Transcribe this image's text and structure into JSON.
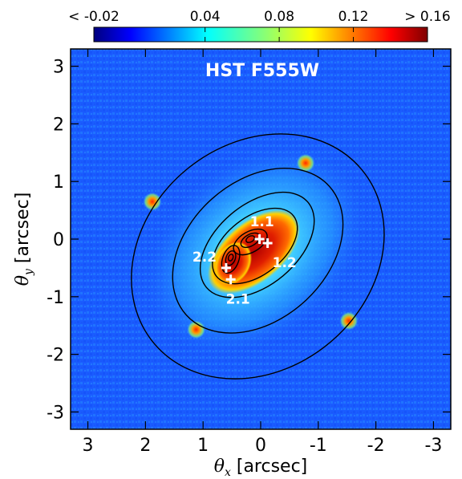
{
  "chart_data": {
    "type": "heatmap",
    "title": "HST F555W",
    "xlabel_symbol": "θ",
    "xlabel_sub": "x",
    "xlabel_unit": " [arcsec]",
    "ylabel_symbol": "θ",
    "ylabel_sub": "y",
    "ylabel_unit": " [arcsec]",
    "xlim": [
      3.3,
      -3.3
    ],
    "ylim": [
      -3.3,
      3.3
    ],
    "x_ticks": [
      3,
      2,
      1,
      0,
      -1,
      -2,
      -3
    ],
    "x_tick_labels": [
      "3",
      "2",
      "1",
      "0",
      "-1",
      "-2",
      "-3"
    ],
    "y_ticks": [
      3,
      2,
      1,
      0,
      -1,
      -2,
      -3
    ],
    "y_tick_labels": [
      "3",
      "2",
      "1",
      "0",
      "-1",
      "-2",
      "-3"
    ],
    "colorbar": {
      "colormap": "jet",
      "range": [
        -0.02,
        0.16
      ],
      "ticks": [
        -0.02,
        0.04,
        0.08,
        0.12,
        0.16
      ],
      "tick_labels": [
        "< -0.02",
        "0.04",
        "0.08",
        "0.12",
        "> 0.16"
      ],
      "placement": "top"
    },
    "colors": {
      "background_low": "#0f3cff",
      "background_mid": "#1e8fff",
      "halo": "#4dd2ff",
      "core": "#d40000"
    },
    "images": [
      {
        "label": "1.1",
        "x": 0.02,
        "y": 0.0
      },
      {
        "label": "1.2",
        "x": -0.12,
        "y": -0.07
      },
      {
        "label": "2.2",
        "x": 0.6,
        "y": -0.5
      },
      {
        "label": "2.1",
        "x": 0.52,
        "y": -0.7
      }
    ],
    "knots": [
      {
        "x": 1.88,
        "y": 0.65
      },
      {
        "x": -0.78,
        "y": 1.32
      },
      {
        "x": 1.12,
        "y": -1.57
      },
      {
        "x": -1.53,
        "y": -1.42
      }
    ],
    "contours": [
      {
        "cx": 0.05,
        "cy": -0.3,
        "a": 2.35,
        "b": 1.95,
        "angle_deg": 40
      },
      {
        "cx": 0.05,
        "cy": -0.2,
        "a": 1.67,
        "b": 1.2,
        "angle_deg": 42
      },
      {
        "cx": 0.06,
        "cy": -0.1,
        "a": 1.15,
        "b": 0.7,
        "angle_deg": 40
      },
      {
        "cx": 0.1,
        "cy": -0.12,
        "a": 0.85,
        "b": 0.5,
        "angle_deg": 38
      },
      {
        "cx": 0.18,
        "cy": -0.05,
        "a": 0.32,
        "b": 0.18,
        "angle_deg": 30
      },
      {
        "cx": 0.18,
        "cy": -0.02,
        "a": 0.18,
        "b": 0.1,
        "angle_deg": 30
      },
      {
        "cx": 0.18,
        "cy": 0.0,
        "a": 0.08,
        "b": 0.05,
        "angle_deg": 30
      },
      {
        "cx": 0.52,
        "cy": -0.35,
        "a": 0.25,
        "b": 0.14,
        "angle_deg": 70
      },
      {
        "cx": 0.52,
        "cy": -0.33,
        "a": 0.13,
        "b": 0.08,
        "angle_deg": 70
      },
      {
        "cx": 0.52,
        "cy": -0.32,
        "a": 0.06,
        "b": 0.04,
        "angle_deg": 70
      }
    ]
  }
}
